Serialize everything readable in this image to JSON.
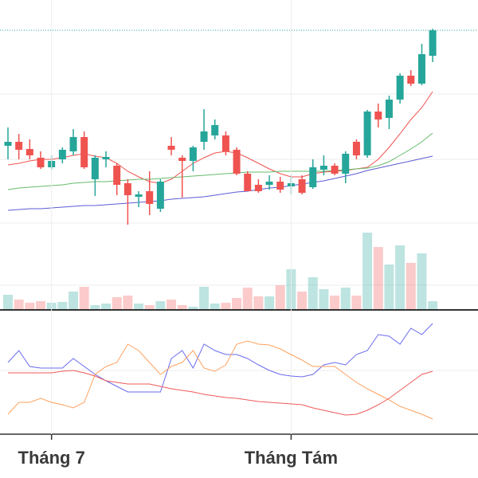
{
  "chart_data": [
    {
      "type": "candlestick",
      "open": [
        217,
        222,
        213,
        202,
        190,
        200,
        210,
        228,
        175,
        200,
        192,
        170,
        153,
        160,
        138,
        217,
        202,
        198,
        222,
        230,
        230,
        212,
        182,
        168,
        168,
        172,
        166,
        175,
        165,
        187,
        192,
        182,
        222,
        205,
        260,
        252,
        275,
        305,
        295,
        330
      ],
      "high": [
        240,
        232,
        225,
        210,
        205,
        215,
        238,
        235,
        205,
        210,
        195,
        175,
        160,
        185,
        175,
        228,
        205,
        217,
        263,
        250,
        235,
        215,
        185,
        175,
        180,
        178,
        180,
        180,
        200,
        205,
        195,
        210,
        225,
        262,
        270,
        280,
        308,
        312,
        345,
        364
      ],
      "low": [
        200,
        200,
        200,
        188,
        187,
        195,
        205,
        188,
        154,
        190,
        155,
        118,
        140,
        130,
        134,
        205,
        152,
        185,
        212,
        225,
        205,
        180,
        160,
        158,
        162,
        158,
        156,
        156,
        163,
        180,
        180,
        170,
        200,
        202,
        240,
        238,
        270,
        292,
        293,
        322
      ],
      "close": [
        222,
        212,
        205,
        190,
        198,
        212,
        228,
        190,
        202,
        203,
        168,
        155,
        156,
        144,
        172,
        212,
        198,
        215,
        235,
        243,
        210,
        182,
        160,
        160,
        172,
        162,
        170,
        158,
        190,
        192,
        182,
        207,
        205,
        260,
        250,
        275,
        305,
        295,
        332,
        362
      ],
      "up_color": "#26a69a",
      "down_color": "#ef5350",
      "ylim": [
        12,
        400
      ],
      "volume": {
        "values": [
          18,
          12,
          8,
          10,
          8,
          9,
          22,
          28,
          5,
          7,
          15,
          17,
          7,
          5,
          10,
          12,
          5,
          3,
          28,
          7,
          8,
          14,
          27,
          16,
          16,
          30,
          50,
          22,
          40,
          25,
          17,
          27,
          17,
          96,
          78,
          56,
          80,
          58,
          70,
          10
        ],
        "ylim": [
          0,
          388
        ]
      },
      "series": [
        {
          "color": "#ef5350",
          "values": [
            193,
            195,
            198,
            200,
            200,
            202,
            205,
            207,
            204,
            202,
            195,
            185,
            178,
            172,
            170,
            175,
            185,
            195,
            202,
            208,
            210,
            208,
            202,
            195,
            188,
            182,
            178,
            178,
            182,
            184,
            185,
            186,
            188,
            190,
            200,
            215,
            232,
            250,
            265,
            285
          ]
        },
        {
          "color": "#66bb6a",
          "values": [
            162,
            164,
            165,
            166,
            167,
            168,
            170,
            171,
            172,
            172,
            173,
            174,
            175,
            175,
            176,
            177,
            178,
            179,
            180,
            181,
            182,
            183,
            184,
            184,
            184,
            185,
            185,
            185,
            185,
            185,
            186,
            187,
            188,
            189,
            192,
            197,
            205,
            213,
            222,
            233
          ]
        },
        {
          "color": "#5c5cd6",
          "values": [
            136,
            137,
            138,
            138,
            139,
            140,
            141,
            142,
            142,
            143,
            144,
            145,
            146,
            147,
            148,
            150,
            151,
            152,
            153,
            155,
            157,
            159,
            160,
            162,
            164,
            165,
            167,
            169,
            171,
            173,
            176,
            179,
            182,
            186,
            189,
            192,
            195,
            198,
            201,
            204
          ]
        }
      ]
    },
    {
      "type": "line",
      "categories": [
        null,
        null,
        null,
        null,
        "Tháng 7",
        null,
        null,
        null,
        null,
        null,
        null,
        null,
        null,
        null,
        null,
        null,
        null,
        null,
        null,
        null,
        null,
        null,
        null,
        null,
        null,
        null,
        "Tháng Tám",
        null,
        null,
        null,
        null,
        null,
        null,
        null,
        null,
        null,
        null,
        null,
        null,
        null
      ],
      "ylim": [
        55,
        205
      ],
      "series": [
        {
          "color": "#6a6aee",
          "values": [
            145,
            160,
            140,
            138,
            138,
            138,
            150,
            140,
            130,
            122,
            115,
            108,
            108,
            108,
            108,
            150,
            160,
            138,
            168,
            160,
            155,
            155,
            150,
            142,
            135,
            130,
            128,
            127,
            130,
            142,
            145,
            142,
            155,
            160,
            180,
            178,
            168,
            188,
            180,
            194
          ]
        },
        {
          "color": "#ffa25f",
          "values": [
            80,
            95,
            95,
            100,
            95,
            92,
            88,
            95,
            130,
            140,
            145,
            168,
            160,
            145,
            130,
            140,
            145,
            160,
            138,
            134,
            142,
            168,
            172,
            168,
            167,
            162,
            155,
            148,
            140,
            140,
            140,
            130,
            120,
            112,
            105,
            98,
            90,
            85,
            80,
            74
          ]
        },
        {
          "color": "#ef5a5a",
          "values": [
            132,
            132,
            132,
            132,
            132,
            134,
            135,
            132,
            128,
            122,
            120,
            118,
            118,
            118,
            115,
            112,
            110,
            108,
            105,
            103,
            101,
            100,
            98,
            96,
            95,
            94,
            93,
            92,
            88,
            85,
            82,
            79,
            80,
            85,
            92,
            100,
            110,
            120,
            130,
            134
          ]
        }
      ]
    }
  ]
}
